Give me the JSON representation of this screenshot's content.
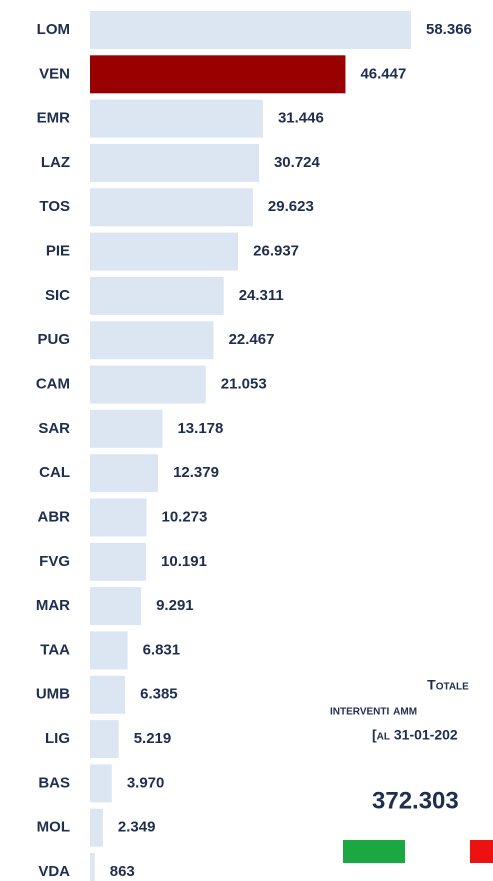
{
  "chart_data": {
    "type": "bar",
    "orientation": "horizontal",
    "categories": [
      "LOM",
      "VEN",
      "EMR",
      "LAZ",
      "TOS",
      "PIE",
      "SIC",
      "PUG",
      "CAM",
      "SAR",
      "CAL",
      "ABR",
      "FVG",
      "MAR",
      "TAA",
      "UMB",
      "LIG",
      "BAS",
      "MOL",
      "VDA"
    ],
    "values": [
      58366,
      46447,
      31446,
      30724,
      29623,
      26937,
      24311,
      22467,
      21053,
      13178,
      12379,
      10273,
      10191,
      9291,
      6831,
      6385,
      5219,
      3970,
      2349,
      863
    ],
    "value_labels": [
      "58.366",
      "46.447",
      "31.446",
      "30.724",
      "29.623",
      "26.937",
      "24.311",
      "22.467",
      "21.053",
      "13.178",
      "12.379",
      "10.273",
      "10.191",
      "9.291",
      "6.831",
      "6.385",
      "5.219",
      "3.970",
      "2.349",
      "863"
    ],
    "color": "#dce6f2",
    "highlight_color": "#990000",
    "highlight_index": 1,
    "annotation": {
      "lines": [
        "Totale",
        "interventi amm",
        "[al 31-01-202"
      ],
      "total": "372.303"
    }
  }
}
